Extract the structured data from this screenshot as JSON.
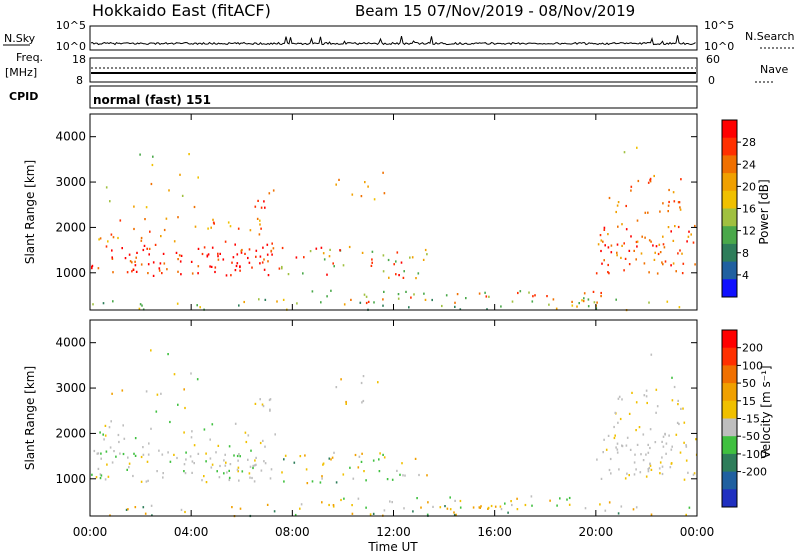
{
  "header": {
    "title": "Hokkaido East (fitACF)",
    "beam_date": "Beam 15  07/Nov/2019 - 08/Nov/2019"
  },
  "nsky_panel": {
    "left_label": "N.Sky",
    "left_ticks": [
      "10^5",
      "10^0"
    ],
    "right_ticks": [
      "10^5",
      "10^0"
    ],
    "right_label": "N.Search"
  },
  "freq_panel": {
    "left_label_1": "Freq.",
    "left_label_2": "[MHz]",
    "left_ticks": [
      "18",
      "8"
    ],
    "right_ticks": [
      "60",
      "0"
    ],
    "right_label": "Nave"
  },
  "cpid_panel": {
    "left_label": "CPID",
    "program": "normal (fast) 151"
  },
  "chart_data": [
    {
      "type": "heatmap",
      "title": "Power",
      "ylabel": "Slant Range [km]",
      "yticks": [
        "1000",
        "2000",
        "3000",
        "4000"
      ],
      "ylim": [
        180,
        4500
      ],
      "colorbar_label": "Power [dB]",
      "colorbar_ticks": [
        "4",
        "8",
        "12",
        "16",
        "20",
        "24",
        "28"
      ],
      "colorbar_range": [
        0,
        32
      ],
      "colors": [
        "#1010ff",
        "#2060a0",
        "#2e7d5a",
        "#4aa84a",
        "#a0c040",
        "#f0c000",
        "#f0a000",
        "#f07000",
        "#ff3000",
        "#ff0000"
      ]
    },
    {
      "type": "heatmap",
      "title": "Velocity",
      "ylabel": "Slant Range [km]",
      "yticks": [
        "1000",
        "2000",
        "3000",
        "4000"
      ],
      "ylim": [
        180,
        4500
      ],
      "colorbar_label": "Velocity [m s⁻¹]",
      "colorbar_ticks": [
        "200",
        "100",
        "50",
        "15",
        "-15",
        "-50",
        "-100",
        "-200"
      ],
      "colors": [
        "#2030c0",
        "#2060a0",
        "#2e7d5a",
        "#40c040",
        "#bebebe",
        "#f0c000",
        "#f0a000",
        "#f07000",
        "#ff3000",
        "#ff0000"
      ]
    }
  ],
  "x_axis": {
    "ticks": [
      "00:00",
      "04:00",
      "08:00",
      "12:00",
      "16:00",
      "20:00",
      "00:00"
    ],
    "label": "Time UT"
  }
}
